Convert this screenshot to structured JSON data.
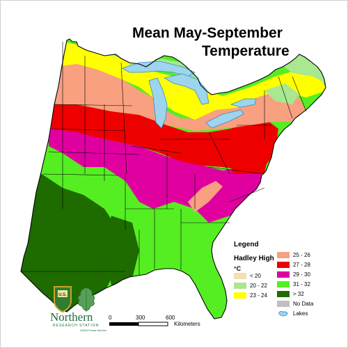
{
  "title": {
    "line1": "Mean May-September",
    "line2": "Temperature"
  },
  "legend": {
    "title": "Legend",
    "model": "Hadley High",
    "unit": "°C",
    "items": [
      {
        "label": "< 20",
        "color": "#f5dfb0"
      },
      {
        "label": "20 - 22",
        "color": "#a8e890"
      },
      {
        "label": "23 - 24",
        "color": "#ffff00"
      },
      {
        "label": "25 - 26",
        "color": "#f8a080"
      },
      {
        "label": "27 - 28",
        "color": "#ee0000"
      },
      {
        "label": "29 - 30",
        "color": "#e000a0"
      },
      {
        "label": "31 - 32",
        "color": "#55ee22"
      },
      {
        "label": "> 32",
        "color": "#1e6b00"
      },
      {
        "label": "No Data",
        "color": "#c0c0c0"
      }
    ],
    "lakes_label": "Lakes",
    "lakes_color": "#9dd5ee"
  },
  "scale": {
    "ticks": [
      "0",
      "300",
      "600"
    ],
    "unit": "Kilometers"
  },
  "logo": {
    "name": "Northern",
    "subtitle": "RESEARCH STATION",
    "agency": "USDA Forest Service",
    "shield_text": "U.S."
  },
  "map": {
    "background": "#ffffff",
    "border_color": "#000000"
  }
}
